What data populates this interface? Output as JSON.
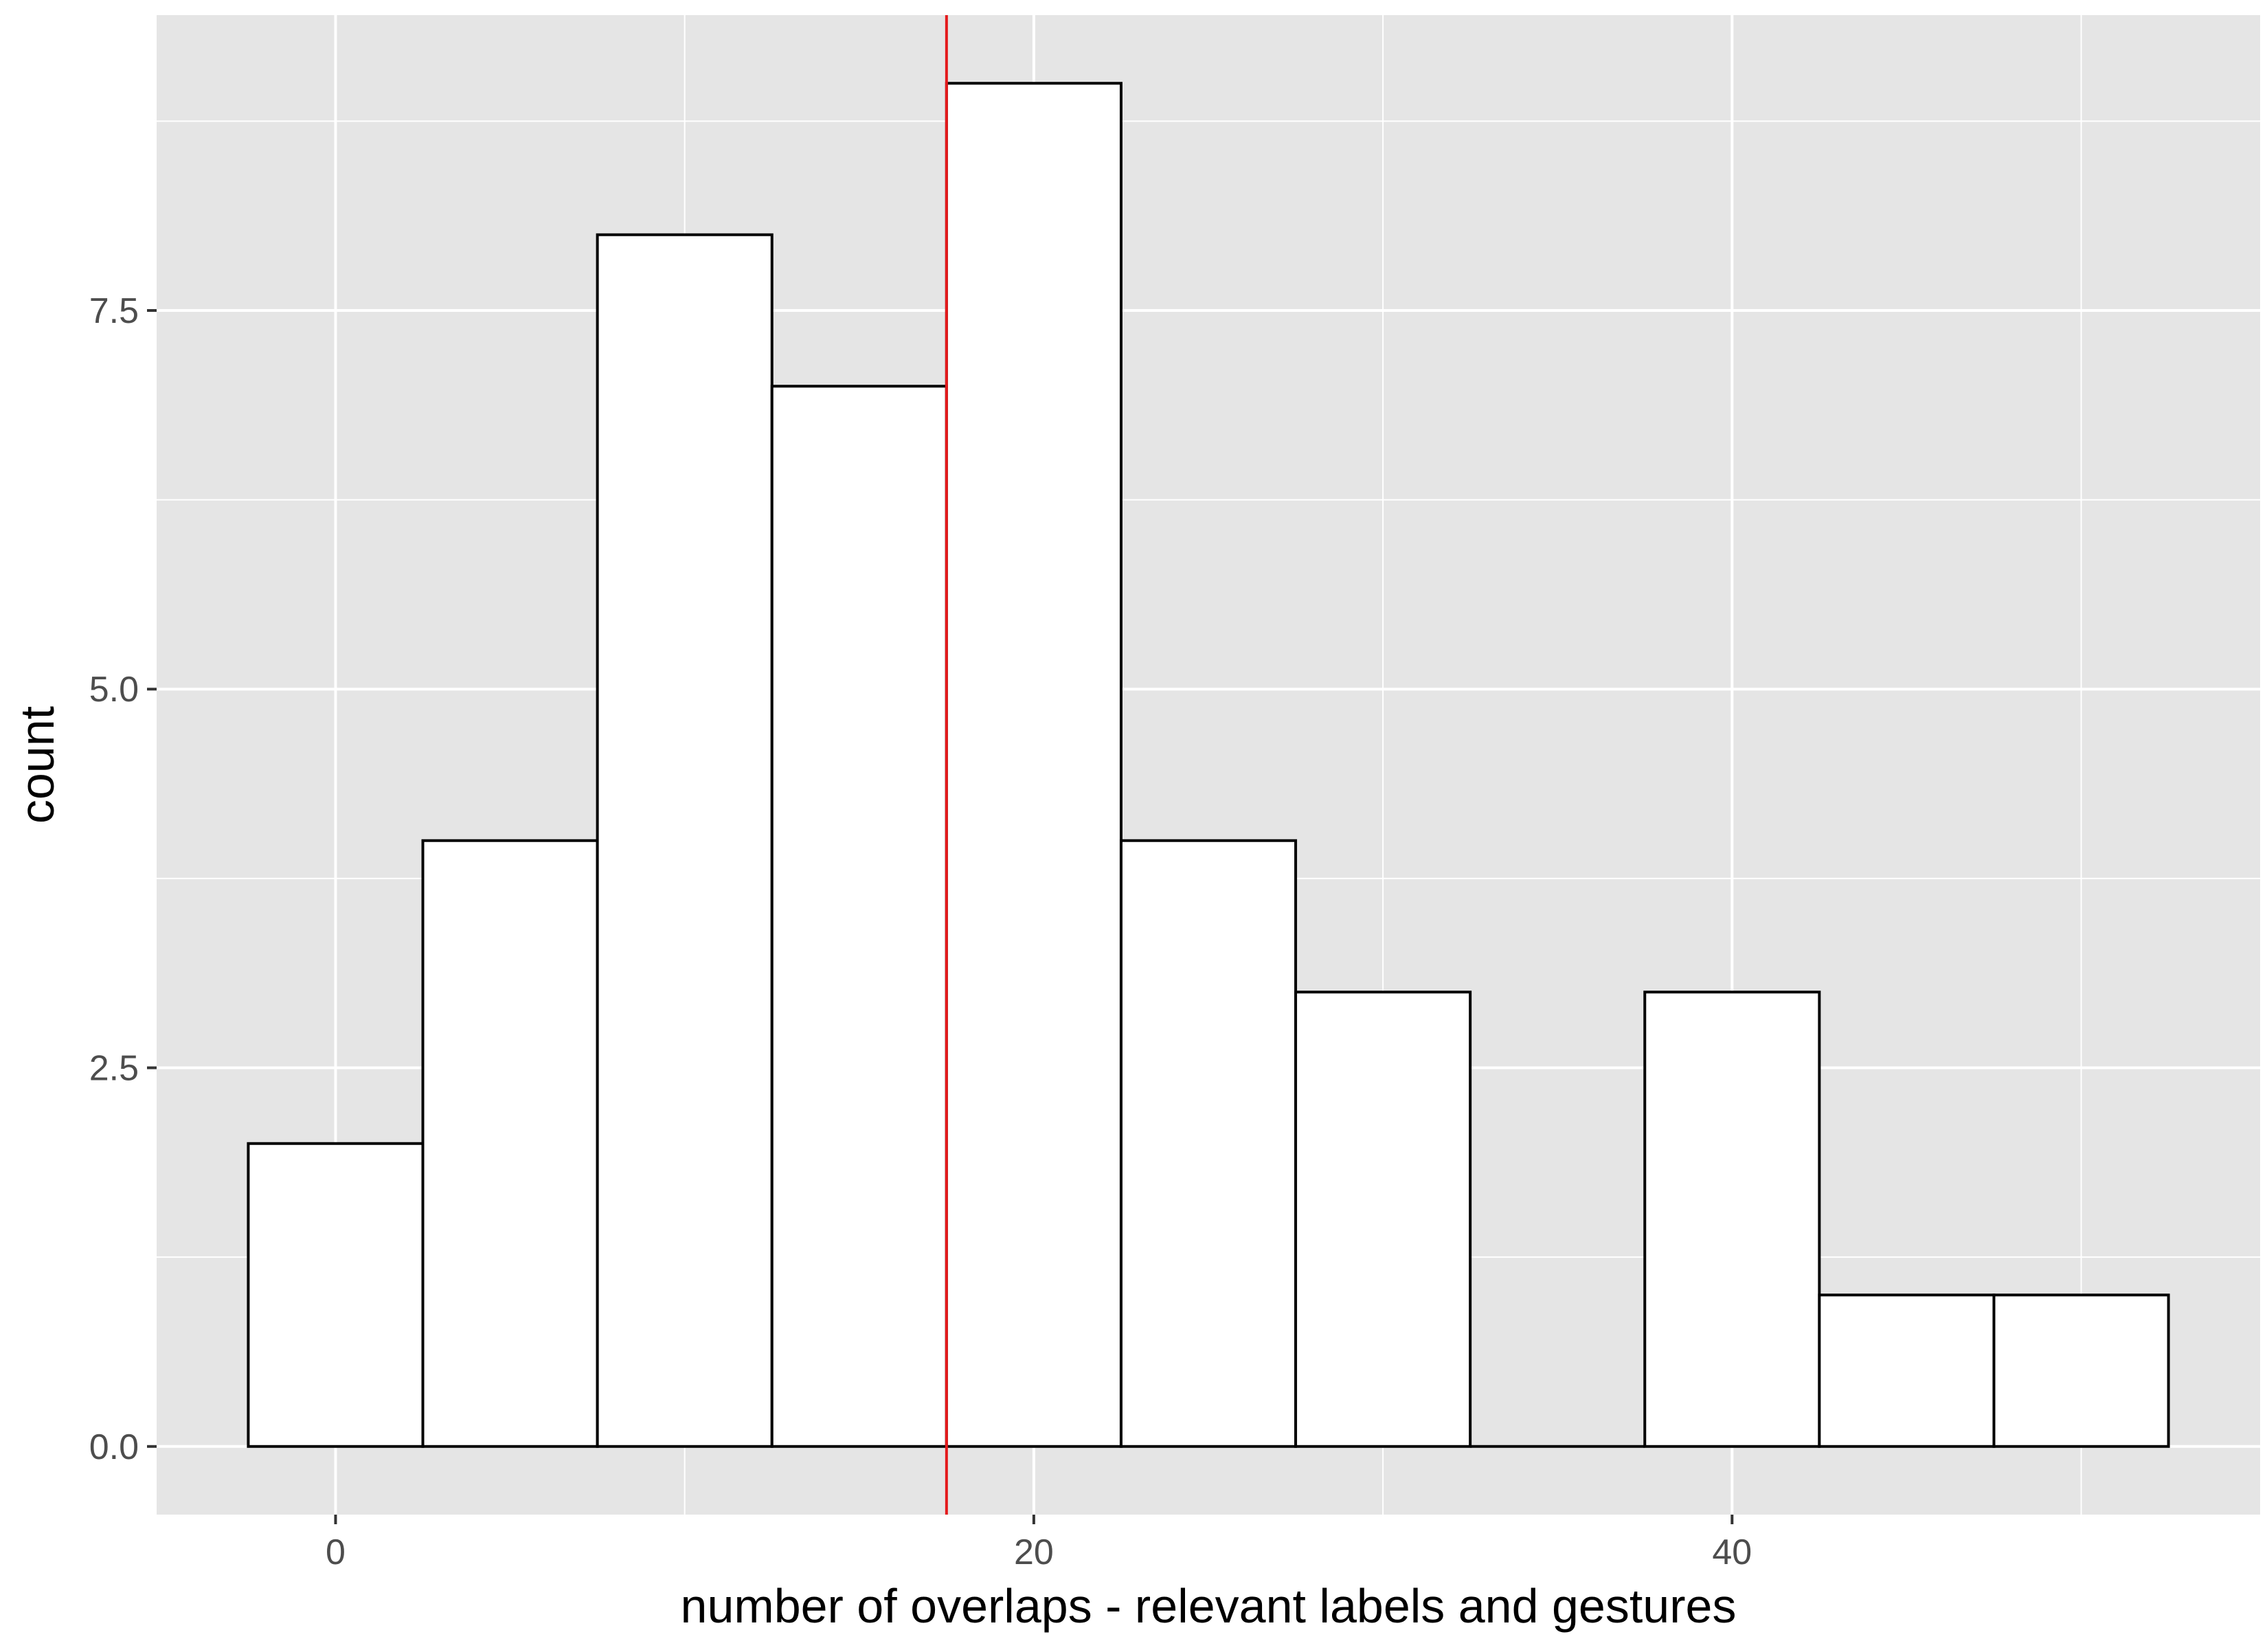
{
  "chart_data": {
    "type": "bar",
    "subtype": "histogram",
    "xlabel": "number of overlaps - relevant labels and gestures",
    "ylabel": "count",
    "bins": [
      {
        "x_min": -2.5,
        "x_max": 2.5,
        "count": 2
      },
      {
        "x_min": 2.5,
        "x_max": 7.5,
        "count": 4
      },
      {
        "x_min": 7.5,
        "x_max": 12.5,
        "count": 8
      },
      {
        "x_min": 12.5,
        "x_max": 17.5,
        "count": 7
      },
      {
        "x_min": 17.5,
        "x_max": 22.5,
        "count": 9
      },
      {
        "x_min": 22.5,
        "x_max": 27.5,
        "count": 4
      },
      {
        "x_min": 27.5,
        "x_max": 32.5,
        "count": 3
      },
      {
        "x_min": 32.5,
        "x_max": 37.5,
        "count": 0
      },
      {
        "x_min": 37.5,
        "x_max": 42.5,
        "count": 3
      },
      {
        "x_min": 42.5,
        "x_max": 47.5,
        "count": 1
      },
      {
        "x_min": 47.5,
        "x_max": 52.5,
        "count": 1
      }
    ],
    "reference_line": {
      "x": 17.5,
      "color": "#e41a1c"
    },
    "xlim": [
      -5.125,
      55.125
    ],
    "ylim": [
      -0.45,
      9.45
    ],
    "x_ticks": [
      0,
      20,
      40
    ],
    "x_tick_labels": [
      "0",
      "20",
      "40"
    ],
    "x_minor_ticks": [
      10,
      30,
      50
    ],
    "y_ticks": [
      0,
      2.5,
      5,
      7.5
    ],
    "y_tick_labels": [
      "0.0",
      "2.5",
      "5.0",
      "7.5"
    ],
    "y_minor_ticks": [
      1.25,
      3.75,
      6.25,
      8.75
    ],
    "grid": true,
    "panel_background": "#e5e5e5",
    "grid_color": "#ffffff",
    "bar_fill": "#ffffff",
    "bar_stroke": "#000000"
  }
}
